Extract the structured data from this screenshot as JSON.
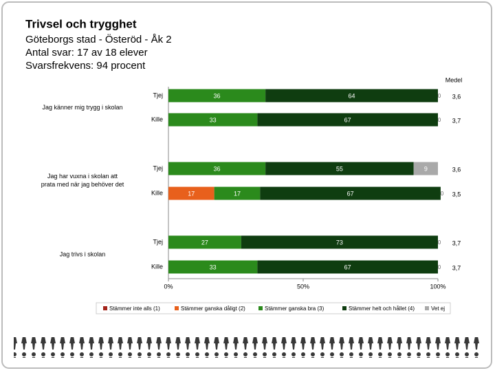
{
  "chart_data": {
    "type": "stacked-bar-horizontal",
    "title": "Trivsel och trygghet",
    "subtitle": [
      "Göteborgs stad - Österöd - Åk 2",
      "Antal svar: 17 av 18 elever",
      "Svarsfrekvens: 94 procent"
    ],
    "groups": [
      "Jag känner mig trygg i skolan",
      "Jag har vuxna i skolan att prata med när jag behöver det",
      "Jag trivs i skolan"
    ],
    "categories": [
      "Tjej",
      "Kille",
      "Tjej",
      "Kille",
      "Tjej",
      "Kille"
    ],
    "series": [
      {
        "name": "Stämmer inte alls (1)",
        "color": "#a3231a",
        "values": [
          0,
          0,
          0,
          0,
          0,
          0
        ]
      },
      {
        "name": "Stämmer ganska dåligt (2)",
        "color": "#e8601c",
        "values": [
          0,
          0,
          0,
          17,
          0,
          0
        ]
      },
      {
        "name": "Stämmer ganska bra (3)",
        "color": "#2b8a1c",
        "values": [
          36,
          33,
          36,
          17,
          27,
          33
        ]
      },
      {
        "name": "Stämmer helt och hållet (4)",
        "color": "#0f3d10",
        "values": [
          64,
          67,
          55,
          67,
          73,
          67
        ]
      },
      {
        "name": "Vet ej",
        "color": "#a9a9a9",
        "values": [
          0,
          0,
          9,
          0,
          0,
          0
        ]
      }
    ],
    "mean_header": "Medel",
    "means": [
      3.6,
      3.7,
      3.6,
      3.5,
      3.7,
      3.7
    ],
    "mean_labels": [
      "3,6",
      "3,7",
      "3,6",
      "3,5",
      "3,7",
      "3,7"
    ],
    "xlim": [
      0,
      100
    ],
    "xticks": [
      {
        "value": 0,
        "label": "0%"
      },
      {
        "value": 50,
        "label": "50%"
      },
      {
        "value": 100,
        "label": "100%"
      }
    ]
  }
}
